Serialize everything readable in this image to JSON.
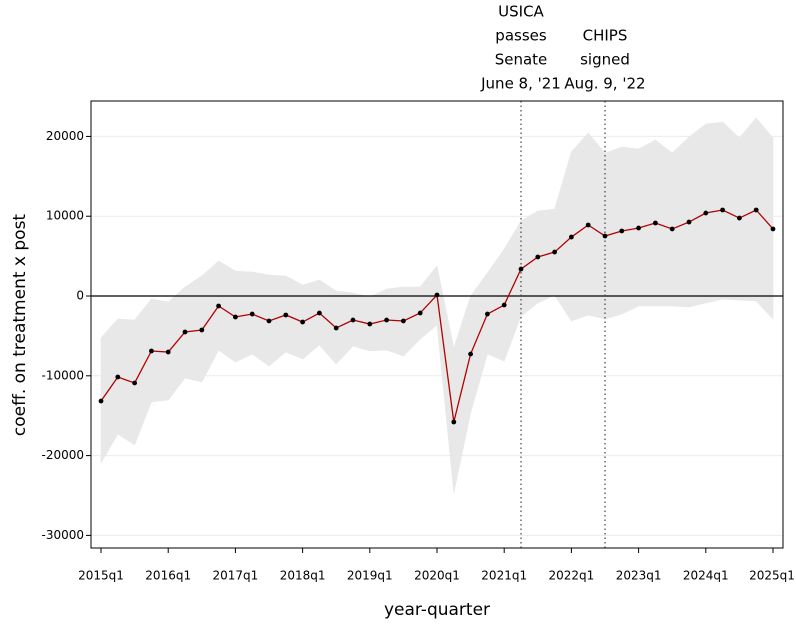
{
  "chart_data": {
    "type": "line",
    "x_label": "year-quarter",
    "y_label": "coeff. on treatment x post",
    "x": [
      2015,
      2015.25,
      2015.5,
      2015.75,
      2016,
      2016.25,
      2016.5,
      2016.75,
      2017,
      2017.25,
      2017.5,
      2017.75,
      2018,
      2018.25,
      2018.5,
      2018.75,
      2019,
      2019.25,
      2019.5,
      2019.75,
      2020,
      2020.25,
      2020.5,
      2020.75,
      2021,
      2021.25,
      2021.5,
      2021.75,
      2022,
      2022.25,
      2022.5,
      2022.75,
      2023,
      2023.25,
      2023.5,
      2023.75,
      2024,
      2024.25,
      2024.5,
      2024.75,
      2025
    ],
    "series": [
      {
        "color": "#b30000",
        "marker_color": "#000000",
        "band_color": "#e8e8e8",
        "values": [
          -13160,
          -10150,
          -10900,
          -6890,
          -7020,
          -4510,
          -4260,
          -1250,
          -2630,
          -2260,
          -3130,
          -2380,
          -3260,
          -2130,
          -4010,
          -3010,
          -3510,
          -3010,
          -3130,
          -2130,
          130,
          -15790,
          -7270,
          -2260,
          -1130,
          3380,
          4890,
          5510,
          7390,
          8900,
          7520,
          8150,
          8520,
          9150,
          8400,
          9270,
          10400,
          10780,
          9770,
          10780,
          8400
        ],
        "ci_upper": [
          -5260,
          -2880,
          -3010,
          -380,
          -750,
          1130,
          2510,
          4390,
          3130,
          3010,
          2630,
          2510,
          1380,
          2010,
          630,
          380,
          -130,
          880,
          1130,
          1130,
          3760,
          -6520,
          0,
          2880,
          5890,
          9400,
          10650,
          10900,
          18050,
          20430,
          17920,
          18670,
          18420,
          19550,
          17920,
          19920,
          21550,
          21800,
          19800,
          22310,
          19800
        ],
        "ci_lower": [
          -20930,
          -17290,
          -18670,
          -13280,
          -13030,
          -10280,
          -10780,
          -6770,
          -8270,
          -7270,
          -8770,
          -7020,
          -7890,
          -6140,
          -8520,
          -6270,
          -6890,
          -6770,
          -7520,
          -5390,
          -3630,
          -24690,
          -14660,
          -7270,
          -8150,
          -2510,
          -880,
          130,
          -3130,
          -2380,
          -2880,
          -2260,
          -1250,
          -1250,
          -1250,
          -1380,
          -880,
          -380,
          -500,
          -630,
          -2880
        ]
      }
    ],
    "reference_line": 0,
    "annotations": [
      {
        "x": 2021.25,
        "lines": [
          "USICA",
          "passes",
          "Senate",
          "June 8, '21"
        ]
      },
      {
        "x": 2022.5,
        "lines": [
          "CHIPS",
          "signed",
          "Aug. 9, '22"
        ]
      }
    ],
    "xlim": [
      2014.851,
      2025.149
    ],
    "ylim": [
      -31580,
      24440
    ],
    "xticks": [
      {
        "value": 2015,
        "label": "2015q1"
      },
      {
        "value": 2016,
        "label": "2016q1"
      },
      {
        "value": 2017,
        "label": "2017q1"
      },
      {
        "value": 2018,
        "label": "2018q1"
      },
      {
        "value": 2019,
        "label": "2019q1"
      },
      {
        "value": 2020,
        "label": "2020q1"
      },
      {
        "value": 2021,
        "label": "2021q1"
      },
      {
        "value": 2022,
        "label": "2022q1"
      },
      {
        "value": 2023,
        "label": "2023q1"
      },
      {
        "value": 2024,
        "label": "2024q1"
      },
      {
        "value": 2025,
        "label": "2025q1"
      }
    ],
    "yticks": [
      -30000,
      -20000,
      -10000,
      0,
      10000,
      20000
    ],
    "grid": true
  }
}
